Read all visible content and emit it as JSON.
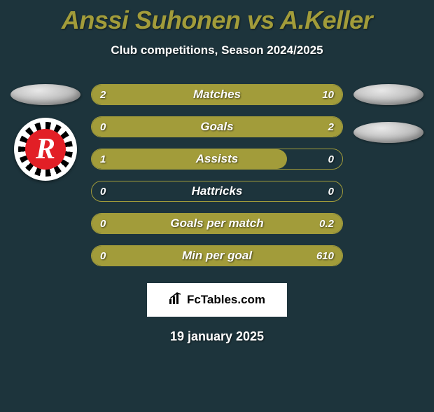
{
  "title": "Anssi Suhonen vs A.Keller",
  "subtitle": "Club competitions, Season 2024/2025",
  "date": "19 january 2025",
  "attribution": "FcTables.com",
  "colors": {
    "background": "#1d343c",
    "accent": "#a29c3a",
    "text": "#ffffff"
  },
  "club_logo_letter": "R",
  "bars": [
    {
      "label": "Matches",
      "left_val": "2",
      "right_val": "10",
      "left_pct": 16.7,
      "right_pct": 83.3,
      "type": "split"
    },
    {
      "label": "Goals",
      "left_val": "0",
      "right_val": "2",
      "left_pct": 0,
      "right_pct": 100,
      "type": "right_full"
    },
    {
      "label": "Assists",
      "left_val": "1",
      "right_val": "0",
      "left_pct": 100,
      "right_pct": 0,
      "type": "left_partial",
      "left_width": 78
    },
    {
      "label": "Hattricks",
      "left_val": "0",
      "right_val": "0",
      "left_pct": 0,
      "right_pct": 0,
      "type": "empty"
    },
    {
      "label": "Goals per match",
      "left_val": "0",
      "right_val": "0.2",
      "left_pct": 0,
      "right_pct": 100,
      "type": "right_full"
    },
    {
      "label": "Min per goal",
      "left_val": "0",
      "right_val": "610",
      "left_pct": 0,
      "right_pct": 100,
      "type": "right_full"
    }
  ]
}
